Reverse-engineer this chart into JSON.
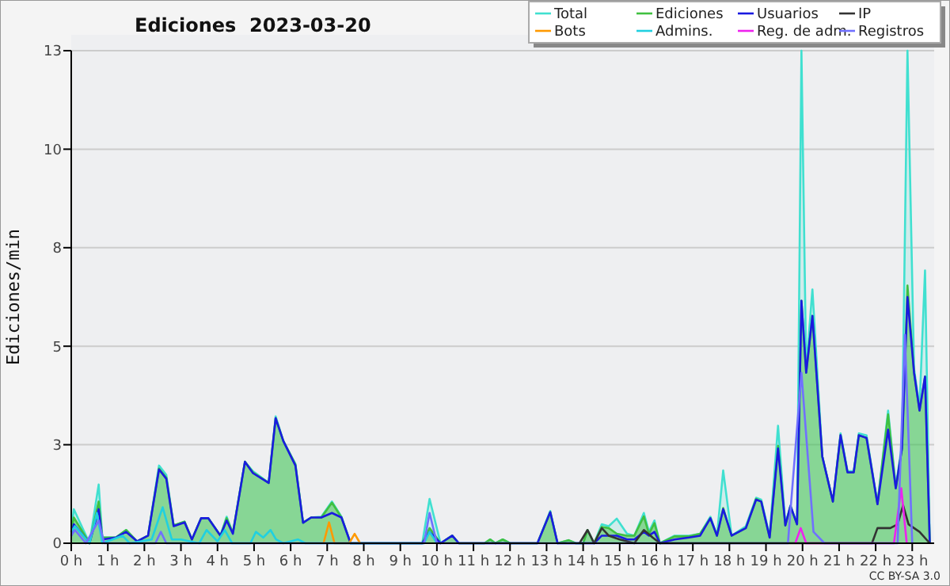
{
  "chart_data": {
    "type": "line",
    "title": "Ediciones  2023-03-20",
    "ylabel": "Ediciones/min",
    "annotations": [
      "CC BY-SA 3.0"
    ],
    "xlim": [
      0,
      23.6
    ],
    "xticks": [
      {
        "value": 0,
        "label": "0 h"
      },
      {
        "value": 1,
        "label": "1 h"
      },
      {
        "value": 2,
        "label": "2 h"
      },
      {
        "value": 3,
        "label": "3 h"
      },
      {
        "value": 4,
        "label": "4 h"
      },
      {
        "value": 5,
        "label": "5 h"
      },
      {
        "value": 6,
        "label": "6 h"
      },
      {
        "value": 7,
        "label": "7 h"
      },
      {
        "value": 8,
        "label": "8 h"
      },
      {
        "value": 9,
        "label": "9 h"
      },
      {
        "value": 10,
        "label": "10 h"
      },
      {
        "value": 11,
        "label": "11 h"
      },
      {
        "value": 12,
        "label": "12 h"
      },
      {
        "value": 13,
        "label": "13 h"
      },
      {
        "value": 14,
        "label": "14 h"
      },
      {
        "value": 15,
        "label": "15 h"
      },
      {
        "value": 16,
        "label": "16 h"
      },
      {
        "value": 17,
        "label": "17 h"
      },
      {
        "value": 18,
        "label": "18 h"
      },
      {
        "value": 19,
        "label": "19 h"
      },
      {
        "value": 20,
        "label": "20 h"
      },
      {
        "value": 21,
        "label": "21 h"
      },
      {
        "value": 22,
        "label": "22 h"
      },
      {
        "value": 23,
        "label": "23 h"
      }
    ],
    "ylim": [
      0,
      13
    ],
    "yticks": [
      0,
      {
        "value": 2.6,
        "label": "3"
      },
      {
        "value": 5.2,
        "label": "5"
      },
      {
        "value": 7.8,
        "label": "8"
      },
      {
        "value": 10.4,
        "label": "10"
      },
      13
    ],
    "grid": "y",
    "legend": "top right",
    "series": [
      {
        "name": "Total",
        "type": "area",
        "color": "#40e0d0",
        "x": [
          0,
          0.07,
          0.5,
          0.75,
          0.85,
          1.22,
          1.5,
          1.8,
          2.1,
          2.4,
          2.6,
          2.8,
          3.1,
          3.3,
          3.55,
          3.75,
          4.08,
          4.25,
          4.42,
          4.75,
          4.97,
          5.4,
          5.59,
          5.8,
          6.13,
          6.34,
          6.56,
          6.84,
          7.13,
          7.39,
          7.64,
          9.6,
          9.8,
          10.1,
          10.42,
          10.6,
          11.3,
          11.46,
          11.6,
          11.8,
          12.0,
          12.75,
          13.1,
          13.3,
          13.6,
          13.8,
          14.0,
          14.12,
          14.3,
          14.51,
          14.7,
          14.92,
          15.2,
          15.4,
          15.66,
          15.8,
          15.95,
          16.1,
          16.5,
          16.9,
          17.2,
          17.48,
          17.66,
          17.83,
          18.06,
          18.45,
          18.73,
          18.87,
          19.1,
          19.33,
          19.53,
          19.67,
          19.85,
          19.97,
          20.1,
          20.27,
          20.54,
          20.83,
          21.04,
          21.23,
          21.4,
          21.54,
          21.75,
          22.05,
          22.34,
          22.55,
          22.72,
          22.87,
          23.05,
          23.2,
          23.35,
          23.48
        ],
        "values": [
          0.3,
          0.9,
          0,
          1.55,
          0.15,
          0.15,
          0.35,
          0.05,
          0.2,
          2.05,
          1.8,
          0.47,
          0.57,
          0.1,
          0.66,
          0.66,
          0.2,
          0.7,
          0.27,
          2.15,
          1.9,
          1.6,
          3.35,
          2.7,
          2.1,
          0.54,
          0.68,
          0.7,
          1.1,
          0.7,
          0,
          0,
          1.17,
          0,
          0.2,
          0,
          0,
          0.1,
          0,
          0.1,
          0,
          0,
          0.85,
          0,
          0.08,
          0,
          0,
          0.35,
          0,
          0.5,
          0.45,
          0.65,
          0.25,
          0.2,
          0.8,
          0.3,
          0.6,
          0,
          0.2,
          0.2,
          0.25,
          0.7,
          0.2,
          1.92,
          0.2,
          0.45,
          1.2,
          1.15,
          0.2,
          3.1,
          0.5,
          1.0,
          0.5,
          13,
          4.6,
          6.7,
          2.3,
          1.1,
          2.9,
          1.9,
          1.9,
          2.9,
          2.85,
          1.05,
          3.5,
          1.5,
          2.6,
          13,
          4.6,
          3.6,
          7.2,
          0
        ]
      },
      {
        "name": "Ediciones",
        "type": "area",
        "color": "#40c040",
        "x": [
          0,
          0.07,
          0.5,
          0.75,
          0.85,
          1.22,
          1.5,
          1.8,
          2.1,
          2.4,
          2.6,
          2.8,
          3.1,
          3.3,
          3.55,
          3.75,
          4.08,
          4.25,
          4.42,
          4.75,
          4.97,
          5.4,
          5.59,
          5.8,
          6.13,
          6.34,
          6.56,
          6.84,
          7.13,
          7.39,
          7.64,
          9.6,
          9.8,
          10.1,
          10.42,
          10.6,
          11.3,
          11.46,
          11.6,
          11.8,
          12.0,
          12.75,
          13.1,
          13.3,
          13.6,
          13.8,
          14.0,
          14.12,
          14.3,
          14.51,
          14.7,
          14.92,
          15.2,
          15.4,
          15.66,
          15.8,
          15.95,
          16.1,
          16.5,
          16.9,
          17.2,
          17.48,
          17.66,
          17.83,
          18.06,
          18.45,
          18.73,
          18.87,
          19.1,
          19.33,
          19.53,
          19.67,
          19.85,
          19.97,
          20.1,
          20.27,
          20.54,
          20.83,
          21.04,
          21.23,
          21.4,
          21.54,
          21.75,
          22.05,
          22.34,
          22.55,
          22.72,
          22.87,
          23.05,
          23.2,
          23.35,
          23.48
        ],
        "values": [
          0.3,
          0.68,
          0,
          1.1,
          0.15,
          0.15,
          0.35,
          0.05,
          0.2,
          1.97,
          1.73,
          0.47,
          0.57,
          0.1,
          0.66,
          0.66,
          0.2,
          0.66,
          0.27,
          2.15,
          1.87,
          1.59,
          3.3,
          2.7,
          2.08,
          0.54,
          0.68,
          0.68,
          1.07,
          0.68,
          0,
          0,
          0.4,
          0,
          0.2,
          0,
          0,
          0.1,
          0,
          0.1,
          0,
          0,
          0.82,
          0,
          0.08,
          0,
          0,
          0.35,
          0,
          0.43,
          0.4,
          0.25,
          0.2,
          0.2,
          0.71,
          0.25,
          0.53,
          0,
          0.18,
          0.18,
          0.25,
          0.66,
          0.2,
          0.93,
          0.2,
          0.4,
          1.17,
          1.1,
          0.15,
          2.57,
          0.47,
          0.98,
          0.5,
          6.4,
          4.5,
          6.0,
          2.29,
          1.1,
          2.85,
          1.87,
          1.87,
          2.85,
          2.78,
          1.03,
          3.4,
          1.45,
          2.5,
          6.8,
          4.5,
          3.5,
          4.4,
          0
        ]
      },
      {
        "name": "Usuarios",
        "color": "#1a1ae0",
        "x": [
          0,
          0.07,
          0.5,
          0.75,
          0.85,
          1.22,
          1.5,
          1.8,
          2.1,
          2.4,
          2.6,
          2.8,
          3.1,
          3.3,
          3.55,
          3.75,
          4.08,
          4.25,
          4.42,
          4.75,
          4.97,
          5.4,
          5.59,
          5.8,
          6.13,
          6.34,
          6.56,
          6.84,
          7.13,
          7.39,
          7.64,
          9.6,
          9.8,
          10.1,
          10.42,
          10.6,
          11.3,
          11.46,
          11.6,
          11.8,
          12.0,
          12.75,
          13.1,
          13.3,
          13.6,
          13.8,
          14.0,
          14.12,
          14.3,
          14.51,
          14.7,
          14.92,
          15.2,
          15.4,
          15.66,
          15.8,
          15.95,
          16.1,
          16.5,
          16.9,
          17.2,
          17.48,
          17.66,
          17.83,
          18.06,
          18.45,
          18.73,
          18.87,
          19.1,
          19.33,
          19.53,
          19.67,
          19.85,
          19.97,
          20.1,
          20.27,
          20.54,
          20.83,
          21.04,
          21.23,
          21.4,
          21.54,
          21.75,
          22.05,
          22.34,
          22.55,
          22.72,
          22.87,
          23.05,
          23.2,
          23.35,
          23.48
        ],
        "values": [
          0.2,
          0.5,
          0,
          0.9,
          0.1,
          0.15,
          0.3,
          0.05,
          0.2,
          1.95,
          1.7,
          0.45,
          0.55,
          0.1,
          0.66,
          0.66,
          0.2,
          0.6,
          0.25,
          2.15,
          1.85,
          1.59,
          3.3,
          2.7,
          2.05,
          0.54,
          0.68,
          0.68,
          0.8,
          0.68,
          0,
          0,
          0.3,
          0,
          0.2,
          0,
          0,
          0,
          0,
          0,
          0,
          0,
          0.82,
          0,
          0,
          0,
          0,
          0,
          0,
          0.2,
          0.2,
          0.2,
          0.1,
          0.1,
          0.3,
          0.2,
          0.3,
          0,
          0.1,
          0.15,
          0.2,
          0.66,
          0.2,
          0.9,
          0.2,
          0.4,
          1.15,
          1.1,
          0.15,
          2.5,
          0.47,
          0.98,
          0.5,
          6.4,
          4.5,
          6.0,
          2.29,
          1.1,
          2.85,
          1.87,
          1.87,
          2.85,
          2.78,
          1.03,
          3.0,
          1.45,
          2.5,
          6.5,
          4.5,
          3.5,
          4.4,
          0
        ]
      },
      {
        "name": "IP",
        "color": "#333333",
        "x": [
          13.9,
          14.12,
          14.3,
          14.51,
          14.7,
          15.0,
          15.4,
          15.66,
          15.9,
          16.1,
          21.9,
          22.05,
          22.4,
          22.6,
          22.75,
          22.9,
          23.2,
          23.48
        ],
        "values": [
          0,
          0.35,
          0,
          0.4,
          0.2,
          0.1,
          0,
          0.35,
          0.15,
          0,
          0,
          0.4,
          0.4,
          0.5,
          1.0,
          0.5,
          0.3,
          0
        ]
      },
      {
        "name": "Bots",
        "color": "#ff9900",
        "x": [
          6.9,
          7.05,
          7.2,
          7.6,
          7.75,
          7.9
        ],
        "values": [
          0,
          0.55,
          0,
          0,
          0.25,
          0
        ]
      },
      {
        "name": "Admins.",
        "color": "#20d0e0",
        "x": [
          0,
          0.1,
          0.5,
          0.7,
          0.85,
          1.4,
          1.6,
          2.2,
          2.5,
          2.75,
          3.0,
          3.5,
          3.7,
          4.0,
          4.2,
          4.4,
          4.9,
          5.05,
          5.25,
          5.45,
          5.6,
          5.8,
          6.2,
          6.4,
          6.6,
          9.65,
          9.8,
          10.0
        ],
        "values": [
          0.3,
          0.45,
          0,
          0.8,
          0,
          0.2,
          0,
          0.1,
          0.95,
          0.1,
          0.1,
          0,
          0.35,
          0.05,
          0.35,
          0,
          0,
          0.3,
          0.15,
          0.35,
          0.1,
          0,
          0.1,
          0,
          0,
          0,
          0.3,
          0
        ]
      },
      {
        "name": "Reg. de adm.",
        "color": "#ee22ee",
        "x": [
          19.8,
          19.95,
          20.1,
          22.5,
          22.7,
          22.85
        ],
        "values": [
          0,
          0.4,
          0,
          0,
          1.45,
          0
        ]
      },
      {
        "name": "Registros",
        "color": "#7070ff",
        "x": [
          0,
          0.1,
          0.4,
          0.75,
          0.9,
          2.3,
          2.45,
          2.6,
          9.65,
          9.8,
          10.0,
          19.6,
          19.97,
          20.3,
          20.6,
          22.6,
          22.8,
          23.0
        ],
        "values": [
          0.2,
          0.35,
          0,
          0.6,
          0,
          0,
          0.3,
          0,
          0,
          0.8,
          0,
          0,
          4.5,
          0.3,
          0,
          0,
          5.5,
          0
        ]
      }
    ]
  }
}
